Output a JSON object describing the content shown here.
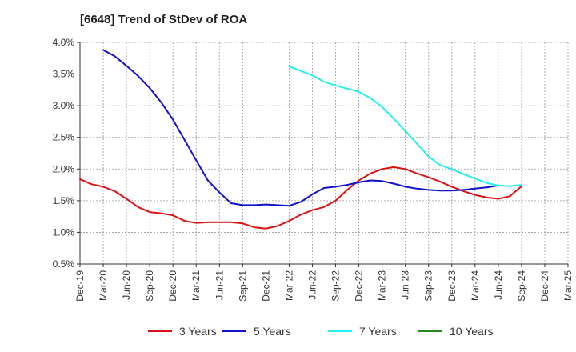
{
  "chart_data": {
    "type": "line",
    "title": "[6648]  Trend of StDev of ROA",
    "xlabel": "",
    "ylabel": "",
    "x_tick_labels": [
      "Dec-19",
      "Mar-20",
      "Jun-20",
      "Sep-20",
      "Dec-20",
      "Mar-21",
      "Jun-21",
      "Sep-21",
      "Dec-21",
      "Mar-22",
      "Jun-22",
      "Sep-22",
      "Dec-22",
      "Mar-23",
      "Jun-23",
      "Sep-23",
      "Dec-23",
      "Mar-24",
      "Jun-24",
      "Sep-24",
      "Dec-24",
      "Mar-25"
    ],
    "y_tick_labels": [
      "0.5%",
      "1.0%",
      "1.5%",
      "2.0%",
      "2.5%",
      "3.0%",
      "3.5%",
      "4.0%"
    ],
    "ylim": [
      0.5,
      4.0
    ],
    "grid": true,
    "legend_position": "bottom",
    "series": [
      {
        "name": "3 Years",
        "color": "#dd1111",
        "points": [
          [
            0,
            1.84
          ],
          [
            0.5,
            1.76
          ],
          [
            1,
            1.72
          ],
          [
            1.5,
            1.65
          ],
          [
            2,
            1.53
          ],
          [
            2.5,
            1.4
          ],
          [
            3,
            1.32
          ],
          [
            3.5,
            1.3
          ],
          [
            4,
            1.27
          ],
          [
            4.5,
            1.18
          ],
          [
            5,
            1.15
          ],
          [
            5.5,
            1.16
          ],
          [
            6,
            1.16
          ],
          [
            6.5,
            1.16
          ],
          [
            7,
            1.14
          ],
          [
            7.5,
            1.08
          ],
          [
            8,
            1.06
          ],
          [
            8.5,
            1.1
          ],
          [
            9,
            1.18
          ],
          [
            9.5,
            1.28
          ],
          [
            10,
            1.35
          ],
          [
            10.5,
            1.4
          ],
          [
            11,
            1.5
          ],
          [
            11.5,
            1.67
          ],
          [
            12,
            1.82
          ],
          [
            12.5,
            1.93
          ],
          [
            13,
            2.0
          ],
          [
            13.5,
            2.03
          ],
          [
            14,
            2.0
          ],
          [
            14.5,
            1.93
          ],
          [
            15,
            1.87
          ],
          [
            15.5,
            1.8
          ],
          [
            16,
            1.72
          ],
          [
            16.5,
            1.65
          ],
          [
            17,
            1.59
          ],
          [
            17.5,
            1.55
          ],
          [
            18,
            1.53
          ],
          [
            18.5,
            1.57
          ],
          [
            19,
            1.73
          ]
        ]
      },
      {
        "name": "5 Years",
        "color": "#1111cc",
        "points": [
          [
            1,
            3.88
          ],
          [
            1.5,
            3.78
          ],
          [
            2,
            3.63
          ],
          [
            2.5,
            3.47
          ],
          [
            3,
            3.28
          ],
          [
            3.5,
            3.05
          ],
          [
            4,
            2.78
          ],
          [
            4.5,
            2.46
          ],
          [
            5,
            2.14
          ],
          [
            5.5,
            1.82
          ],
          [
            6,
            1.63
          ],
          [
            6.5,
            1.46
          ],
          [
            7,
            1.43
          ],
          [
            7.5,
            1.43
          ],
          [
            8,
            1.44
          ],
          [
            8.5,
            1.43
          ],
          [
            9,
            1.42
          ],
          [
            9.5,
            1.48
          ],
          [
            10,
            1.6
          ],
          [
            10.5,
            1.7
          ],
          [
            11,
            1.72
          ],
          [
            11.5,
            1.75
          ],
          [
            12,
            1.79
          ],
          [
            12.5,
            1.82
          ],
          [
            13,
            1.81
          ],
          [
            13.5,
            1.77
          ],
          [
            14,
            1.72
          ],
          [
            14.5,
            1.69
          ],
          [
            15,
            1.67
          ],
          [
            15.5,
            1.66
          ],
          [
            16,
            1.66
          ],
          [
            16.5,
            1.67
          ],
          [
            17,
            1.69
          ],
          [
            17.5,
            1.71
          ],
          [
            18,
            1.74
          ]
        ]
      },
      {
        "name": "7 Years",
        "color": "#22eeee",
        "points": [
          [
            9,
            3.62
          ],
          [
            9.5,
            3.55
          ],
          [
            10,
            3.48
          ],
          [
            10.5,
            3.38
          ],
          [
            11,
            3.32
          ],
          [
            11.5,
            3.27
          ],
          [
            12,
            3.22
          ],
          [
            12.5,
            3.12
          ],
          [
            13,
            2.98
          ],
          [
            13.5,
            2.8
          ],
          [
            14,
            2.6
          ],
          [
            14.5,
            2.4
          ],
          [
            15,
            2.2
          ],
          [
            15.5,
            2.06
          ],
          [
            16,
            2.0
          ],
          [
            16.5,
            1.92
          ],
          [
            17,
            1.85
          ],
          [
            17.5,
            1.78
          ],
          [
            18,
            1.74
          ],
          [
            18.5,
            1.73
          ],
          [
            19,
            1.75
          ]
        ]
      },
      {
        "name": "10 Years",
        "color": "#228822",
        "points": []
      }
    ]
  }
}
